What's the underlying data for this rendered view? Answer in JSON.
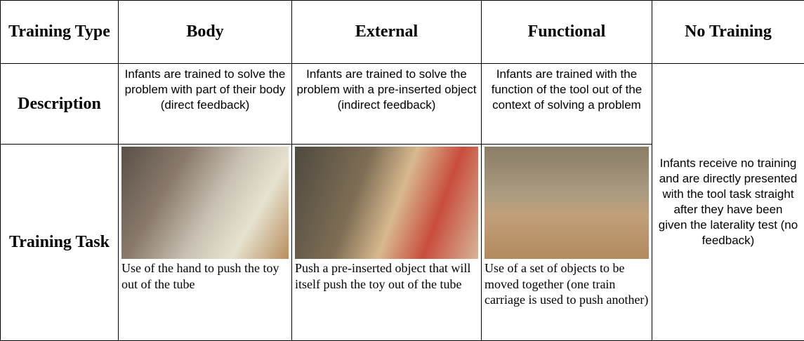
{
  "table": {
    "header": [
      "Training Type",
      "Body",
      "External",
      "Functional",
      "No Training"
    ],
    "rows": [
      [
        "Description",
        "Infants are trained to solve the problem with part of their body (direct feedback)",
        "Infants are trained to solve the problem with a pre-inserted object (indirect feedback)",
        "Infants are trained with the function of the tool out of the context of solving a problem",
        "Infants receive no training and are directly presented with the tool task straight after they have been given the laterality test (no feedback)"
      ],
      [
        "Training Task",
        "Use of the hand to push the toy out of the tube",
        "Push a pre-inserted object that will itself push the toy out of the tube",
        "Use of a set of objects to be moved together (one train carriage is used to push another)"
      ]
    ]
  }
}
